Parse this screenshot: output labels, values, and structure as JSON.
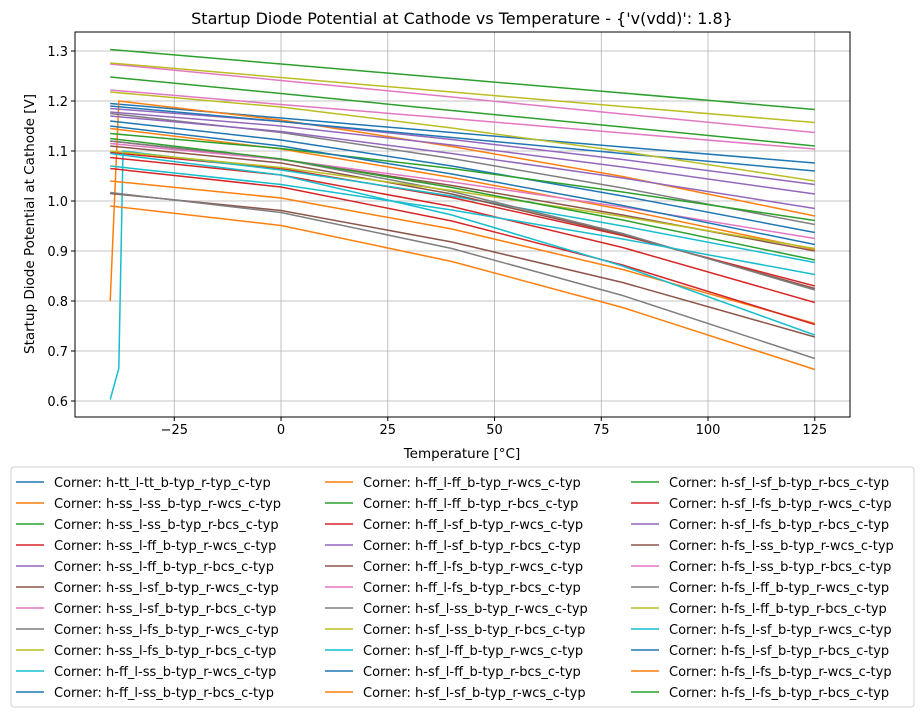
{
  "chart_data": {
    "type": "line",
    "title": "Startup Diode Potential at Cathode vs Temperature - {'v(vdd)': 1.8}",
    "xlabel": "Temperature [°C]",
    "ylabel": "Startup Diode Potential at Cathode [V]",
    "xlim": [
      -48.25,
      133.25
    ],
    "ylim": [
      0.568,
      1.338
    ],
    "xticks": [
      -25,
      0,
      25,
      50,
      75,
      100,
      125
    ],
    "xtick_labels": [
      "−25",
      "0",
      "25",
      "50",
      "75",
      "100",
      "125"
    ],
    "yticks": [
      0.6,
      0.7,
      0.8,
      0.9,
      1.0,
      1.1,
      1.2,
      1.3
    ],
    "ytick_labels": [
      "0.6",
      "0.7",
      "0.8",
      "0.9",
      "1.0",
      "1.1",
      "1.2",
      "1.3"
    ],
    "grid": true,
    "legend_placement": "below",
    "legend_columns": 3,
    "series": [
      {
        "name": "Corner: h-tt_l-tt_b-typ_r-typ_c-typ",
        "color": "#1f77b4",
        "x": [
          -40,
          0,
          40,
          80,
          125
        ],
        "y": [
          1.195,
          1.166,
          1.137,
          1.108,
          1.076
        ]
      },
      {
        "name": "Corner: h-ss_l-ss_b-typ_r-wcs_c-typ",
        "color": "#ff7f0e",
        "x": [
          -40,
          -38,
          0,
          40,
          80,
          125
        ],
        "y": [
          0.8,
          1.2,
          1.162,
          1.109,
          1.049,
          0.97
        ]
      },
      {
        "name": "Corner: h-ss_l-ss_b-typ_r-bcs_c-typ",
        "color": "#2ca02c",
        "x": [
          -40,
          0,
          40,
          80,
          125
        ],
        "y": [
          1.303,
          1.274,
          1.245,
          1.216,
          1.183
        ]
      },
      {
        "name": "Corner: h-ss_l-ff_b-typ_r-wcs_c-typ",
        "color": "#d62728",
        "x": [
          -40,
          0,
          40,
          80,
          125
        ],
        "y": [
          1.097,
          1.065,
          1.007,
          0.931,
          0.83
        ]
      },
      {
        "name": "Corner: h-ss_l-ff_b-typ_r-bcs_c-typ",
        "color": "#9467bd",
        "x": [
          -40,
          0,
          40,
          80,
          125
        ],
        "y": [
          1.185,
          1.159,
          1.123,
          1.083,
          1.033
        ]
      },
      {
        "name": "Corner: h-ss_l-sf_b-typ_r-wcs_c-typ",
        "color": "#8c564b",
        "x": [
          -40,
          0,
          40,
          80,
          125
        ],
        "y": [
          1.12,
          1.083,
          1.031,
          0.972,
          0.9
        ]
      },
      {
        "name": "Corner: h-ss_l-sf_b-typ_r-bcs_c-typ",
        "color": "#e377c2",
        "x": [
          -40,
          0,
          40,
          80,
          125
        ],
        "y": [
          1.274,
          1.241,
          1.208,
          1.174,
          1.137
        ]
      },
      {
        "name": "Corner: h-ss_l-fs_b-typ_r-wcs_c-typ",
        "color": "#7f7f7f",
        "x": [
          -40,
          0,
          40,
          80,
          125
        ],
        "y": [
          1.175,
          1.137,
          1.085,
          1.026,
          0.953
        ]
      },
      {
        "name": "Corner: h-ss_l-fs_b-typ_r-bcs_c-typ",
        "color": "#bcbd22",
        "x": [
          -40,
          0,
          40,
          80,
          125
        ],
        "y": [
          1.276,
          1.247,
          1.218,
          1.189,
          1.157
        ]
      },
      {
        "name": "Corner: h-ff_l-ss_b-typ_r-wcs_c-typ",
        "color": "#17becf",
        "x": [
          -40,
          -38,
          -37,
          0,
          40,
          80,
          125
        ],
        "y": [
          0.603,
          0.665,
          1.1,
          1.062,
          1.01,
          0.95,
          0.877
        ]
      },
      {
        "name": "Corner: h-ff_l-ss_b-typ_r-bcs_c-typ",
        "color": "#1f77b4",
        "x": [
          -40,
          0,
          40,
          80,
          125
        ],
        "y": [
          1.19,
          1.159,
          1.127,
          1.095,
          1.06
        ]
      },
      {
        "name": "Corner: h-ff_l-ff_b-typ_r-wcs_c-typ",
        "color": "#ff7f0e",
        "x": [
          -40,
          0,
          40,
          80,
          125
        ],
        "y": [
          1.145,
          1.104,
          1.047,
          0.983,
          0.903
        ]
      },
      {
        "name": "Corner: h-ff_l-ff_b-typ_r-bcs_c-typ",
        "color": "#2ca02c",
        "x": [
          -40,
          0,
          40,
          80,
          125
        ],
        "y": [
          1.248,
          1.215,
          1.181,
          1.148,
          1.11
        ]
      },
      {
        "name": "Corner: h-ff_l-sf_b-typ_r-wcs_c-typ",
        "color": "#d62728",
        "x": [
          -40,
          0,
          40,
          80,
          125
        ],
        "y": [
          1.087,
          1.052,
          0.989,
          0.907,
          0.797
        ]
      },
      {
        "name": "Corner: h-ff_l-sf_b-typ_r-bcs_c-typ",
        "color": "#9467bd",
        "x": [
          -40,
          0,
          40,
          80,
          125
        ],
        "y": [
          1.178,
          1.15,
          1.112,
          1.068,
          1.014
        ]
      },
      {
        "name": "Corner: h-ff_l-fs_b-typ_r-wcs_c-typ",
        "color": "#8c564b",
        "x": [
          -40,
          0,
          40,
          80,
          125
        ],
        "y": [
          1.11,
          1.076,
          1.014,
          0.933,
          0.825
        ]
      },
      {
        "name": "Corner: h-ff_l-fs_b-typ_r-bcs_c-typ",
        "color": "#e377c2",
        "x": [
          -40,
          0,
          40,
          80,
          125
        ],
        "y": [
          1.222,
          1.193,
          1.165,
          1.136,
          1.104
        ]
      },
      {
        "name": "Corner: h-sf_l-ss_b-typ_r-wcs_c-typ",
        "color": "#7f7f7f",
        "x": [
          -40,
          0,
          40,
          80,
          125
        ],
        "y": [
          1.12,
          1.084,
          1.019,
          0.935,
          0.822
        ]
      },
      {
        "name": "Corner: h-sf_l-ss_b-typ_r-bcs_c-typ",
        "color": "#bcbd22",
        "x": [
          -40,
          0,
          40,
          80,
          125
        ],
        "y": [
          1.218,
          1.188,
          1.146,
          1.099,
          1.04
        ]
      },
      {
        "name": "Corner: h-sf_l-ff_b-typ_r-wcs_c-typ",
        "color": "#17becf",
        "x": [
          -40,
          0,
          40,
          80,
          125
        ],
        "y": [
          1.07,
          1.033,
          0.982,
          0.924,
          0.853
        ]
      },
      {
        "name": "Corner: h-sf_l-ff_b-typ_r-bcs_c-typ",
        "color": "#1f77b4",
        "x": [
          -40,
          0,
          40,
          80,
          125
        ],
        "y": [
          1.16,
          1.122,
          1.07,
          1.01,
          0.937
        ]
      },
      {
        "name": "Corner: h-sf_l-sf_b-typ_r-wcs_c-typ",
        "color": "#ff7f0e",
        "x": [
          -40,
          0,
          40,
          80,
          125
        ],
        "y": [
          1.04,
          1.006,
          0.944,
          0.863,
          0.755
        ]
      },
      {
        "name": "Corner: h-sf_l-sf_b-typ_r-bcs_c-typ",
        "color": "#2ca02c",
        "x": [
          -40,
          0,
          40,
          80,
          125
        ],
        "y": [
          1.135,
          1.105,
          1.065,
          1.018,
          0.961
        ]
      },
      {
        "name": "Corner: h-sf_l-fs_b-typ_r-wcs_c-typ",
        "color": "#d62728",
        "x": [
          -40,
          0,
          40,
          80,
          125
        ],
        "y": [
          1.065,
          1.028,
          0.96,
          0.872,
          0.753
        ]
      },
      {
        "name": "Corner: h-sf_l-fs_b-typ_r-bcs_c-typ",
        "color": "#9467bd",
        "x": [
          -40,
          0,
          40,
          80,
          125
        ],
        "y": [
          1.17,
          1.139,
          1.095,
          1.046,
          0.985
        ]
      },
      {
        "name": "Corner: h-fs_l-ss_b-typ_r-wcs_c-typ",
        "color": "#8c564b",
        "x": [
          -40,
          0,
          40,
          80,
          125
        ],
        "y": [
          1.015,
          0.981,
          0.918,
          0.837,
          0.728
        ]
      },
      {
        "name": "Corner: h-fs_l-ss_b-typ_r-bcs_c-typ",
        "color": "#e377c2",
        "x": [
          -40,
          0,
          40,
          80,
          125
        ],
        "y": [
          1.115,
          1.083,
          1.038,
          0.988,
          0.925
        ]
      },
      {
        "name": "Corner: h-fs_l-ff_b-typ_r-wcs_c-typ",
        "color": "#7f7f7f",
        "x": [
          -40,
          0,
          40,
          80,
          125
        ],
        "y": [
          1.017,
          0.977,
          0.905,
          0.811,
          0.685
        ]
      },
      {
        "name": "Corner: h-fs_l-ff_b-typ_r-bcs_c-typ",
        "color": "#bcbd22",
        "x": [
          -40,
          0,
          40,
          80,
          125
        ],
        "y": [
          1.1,
          1.067,
          1.021,
          0.969,
          0.905
        ]
      },
      {
        "name": "Corner: h-fs_l-sf_b-typ_r-wcs_c-typ",
        "color": "#17becf",
        "x": [
          -40,
          0,
          40,
          80,
          125
        ],
        "y": [
          1.095,
          1.052,
          0.972,
          0.87,
          0.732
        ]
      },
      {
        "name": "Corner: h-fs_l-sf_b-typ_r-bcs_c-typ",
        "color": "#1f77b4",
        "x": [
          -40,
          0,
          40,
          80,
          125
        ],
        "y": [
          1.15,
          1.11,
          1.054,
          0.991,
          0.913
        ]
      },
      {
        "name": "Corner: h-fs_l-fs_b-typ_r-wcs_c-typ",
        "color": "#ff7f0e",
        "x": [
          -40,
          0,
          40,
          80,
          125
        ],
        "y": [
          0.99,
          0.951,
          0.879,
          0.787,
          0.663
        ]
      },
      {
        "name": "Corner: h-fs_l-fs_b-typ_r-bcs_c-typ",
        "color": "#2ca02c",
        "x": [
          -40,
          0,
          40,
          80,
          125
        ],
        "y": [
          1.125,
          1.084,
          1.027,
          0.962,
          0.882
        ]
      }
    ]
  }
}
